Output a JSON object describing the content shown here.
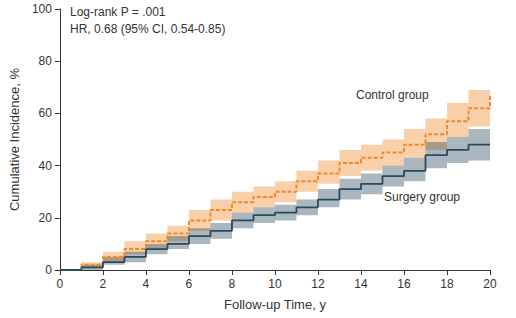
{
  "chart_data": {
    "type": "step",
    "x_label": "Follow-up Time, y",
    "y_label": "Cumulative Incidence, %",
    "annotations": [
      "Log-rank P = .001",
      "HR, 0.68 (95% CI, 0.54-0.85)"
    ],
    "x": [
      0,
      1,
      2,
      3,
      4,
      5,
      6,
      7,
      8,
      9,
      10,
      11,
      12,
      13,
      14,
      15,
      16,
      17,
      18,
      19,
      20
    ],
    "series": [
      {
        "name": "Control group",
        "color": "#ef8a2a",
        "line_style": "dashed",
        "values": [
          0,
          2,
          5,
          8,
          11,
          14,
          19,
          23,
          26,
          28,
          30,
          34,
          37,
          41,
          43,
          45,
          48,
          52,
          57,
          62,
          67
        ],
        "lower": [
          0,
          1,
          3,
          6,
          8,
          11,
          15,
          19,
          22,
          24,
          26,
          30,
          33,
          36,
          38,
          40,
          43,
          46,
          51,
          55,
          59
        ],
        "upper": [
          0,
          3,
          7,
          11,
          14,
          17,
          23,
          27,
          30,
          32,
          34,
          38,
          42,
          46,
          48,
          50,
          54,
          58,
          64,
          69,
          74
        ]
      },
      {
        "name": "Surgery group",
        "color": "#2b4a5c",
        "line_style": "solid",
        "values": [
          0,
          1,
          3,
          5,
          8,
          10,
          13,
          15,
          19,
          21,
          22,
          24,
          27,
          31,
          33,
          36,
          38,
          44,
          46,
          48,
          48
        ],
        "lower": [
          0,
          0,
          2,
          3,
          6,
          8,
          10,
          12,
          16,
          18,
          19,
          21,
          24,
          27,
          29,
          32,
          34,
          39,
          41,
          42,
          42
        ],
        "upper": [
          0,
          2,
          5,
          7,
          10,
          13,
          16,
          18,
          22,
          24,
          25,
          27,
          31,
          35,
          37,
          40,
          43,
          49,
          51,
          54,
          55
        ]
      }
    ],
    "xlim": [
      0,
      20
    ],
    "xticks": [
      0,
      2,
      4,
      6,
      8,
      10,
      12,
      14,
      16,
      18,
      20
    ],
    "ylim": [
      0,
      100
    ],
    "yticks": [
      0,
      20,
      40,
      60,
      80,
      100
    ],
    "grid": false
  }
}
